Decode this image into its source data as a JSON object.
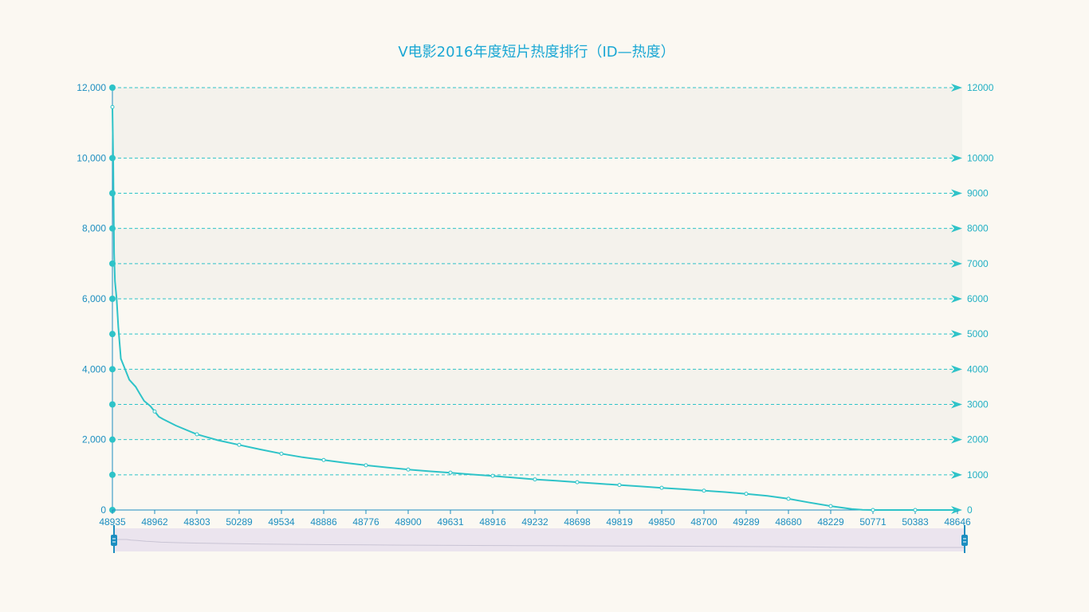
{
  "colors": {
    "background": "#fbf8f2",
    "title": "#1aa7d4",
    "line": "#2ec3c8",
    "left_axis": "#1c8ec0",
    "right_axis": "#21b0c4",
    "band": "#f4f2ec",
    "zoom_fill": "#ebe4ee",
    "zoom_handle": "#1c8ec0"
  },
  "chart_data": {
    "type": "line",
    "title": "V电影2016年度短片热度排行（ID—热度）",
    "xlabel": "",
    "ylabel": "",
    "x_tick_labels": [
      "48935",
      "48962",
      "48303",
      "50289",
      "49534",
      "48886",
      "48776",
      "48900",
      "49631",
      "48916",
      "49232",
      "48698",
      "49819",
      "49850",
      "48700",
      "49289",
      "48680",
      "48229",
      "50771",
      "50383",
      "48646"
    ],
    "y_left": {
      "ticks": [
        0,
        2000,
        4000,
        6000,
        8000,
        10000,
        12000
      ],
      "tick_labels": [
        "0",
        "2,000",
        "4,000",
        "6,000",
        "8,000",
        "10,000",
        "12,000"
      ],
      "ylim": [
        0,
        12000
      ]
    },
    "y_right": {
      "ticks": [
        0,
        1000,
        2000,
        3000,
        4000,
        5000,
        6000,
        7000,
        8000,
        9000,
        10000,
        12000
      ],
      "tick_labels": [
        "0",
        "1000",
        "2000",
        "3000",
        "4000",
        "5000",
        "6000",
        "7000",
        "8000",
        "9000",
        "10000",
        "12000"
      ]
    },
    "left_axis_dots": [
      0,
      1000,
      2000,
      3000,
      4000,
      5000,
      6000,
      7000,
      8000,
      9000,
      10000,
      12000
    ],
    "grid": true,
    "x_range": [
      0,
      20
    ],
    "series": [
      {
        "points": [
          [
            0,
            11450
          ],
          [
            0.02,
            9800
          ],
          [
            0.04,
            7300
          ],
          [
            0.06,
            6500
          ],
          [
            0.1,
            6000
          ],
          [
            0.14,
            5200
          ],
          [
            0.2,
            4300
          ],
          [
            0.3,
            4000
          ],
          [
            0.4,
            3700
          ],
          [
            0.55,
            3500
          ],
          [
            0.65,
            3300
          ],
          [
            0.75,
            3100
          ],
          [
            0.9,
            2950
          ],
          [
            1.0,
            2800
          ],
          [
            1.1,
            2650
          ],
          [
            1.2,
            2580
          ],
          [
            1.5,
            2400
          ],
          [
            2.0,
            2150
          ],
          [
            2.5,
            1980
          ],
          [
            3.0,
            1850
          ],
          [
            3.5,
            1720
          ],
          [
            4.0,
            1600
          ],
          [
            4.5,
            1500
          ],
          [
            5.0,
            1420
          ],
          [
            5.5,
            1340
          ],
          [
            6.0,
            1270
          ],
          [
            6.5,
            1210
          ],
          [
            7.0,
            1150
          ],
          [
            7.5,
            1100
          ],
          [
            8.0,
            1060
          ],
          [
            8.5,
            1010
          ],
          [
            9.0,
            970
          ],
          [
            9.5,
            920
          ],
          [
            10.0,
            870
          ],
          [
            10.5,
            830
          ],
          [
            11.0,
            790
          ],
          [
            11.5,
            750
          ],
          [
            12.0,
            710
          ],
          [
            12.5,
            670
          ],
          [
            13.0,
            630
          ],
          [
            13.5,
            590
          ],
          [
            14.0,
            550
          ],
          [
            14.5,
            510
          ],
          [
            15.0,
            460
          ],
          [
            15.5,
            400
          ],
          [
            16.0,
            320
          ],
          [
            16.5,
            210
          ],
          [
            17.0,
            110
          ],
          [
            17.5,
            30
          ],
          [
            17.75,
            5
          ],
          [
            18.0,
            0
          ],
          [
            19.0,
            0
          ],
          [
            20.0,
            0
          ]
        ]
      }
    ],
    "markers_at": [
      0,
      1,
      2,
      3,
      4,
      5,
      6,
      7,
      8,
      9,
      10,
      11,
      12,
      13,
      14,
      15,
      16,
      17,
      18,
      19
    ]
  },
  "zoom_slider": {
    "start_percent": 0,
    "end_percent": 100
  }
}
